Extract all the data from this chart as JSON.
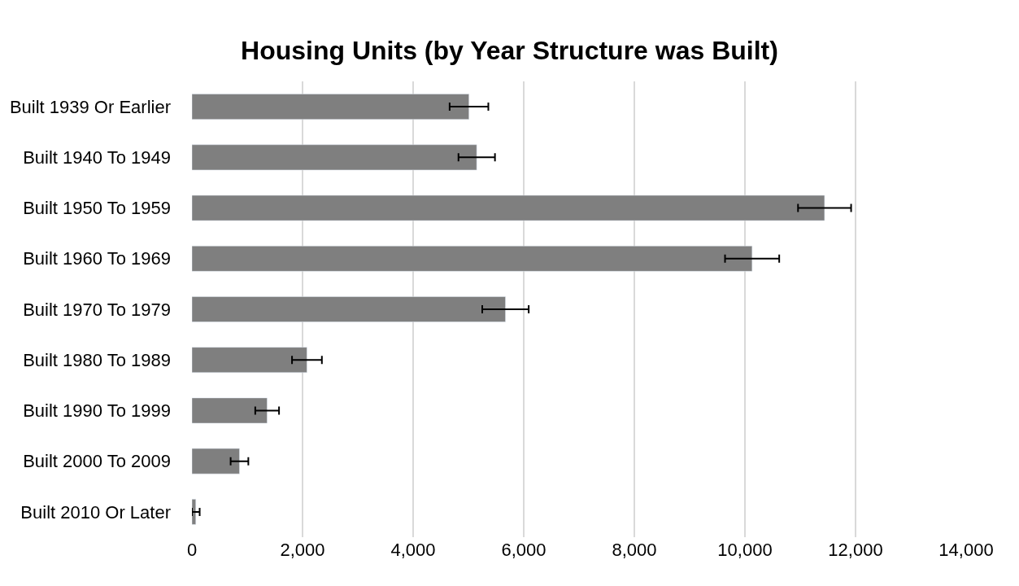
{
  "chart_data": {
    "type": "bar",
    "orientation": "horizontal",
    "title": "Housing Units (by Year Structure was Built)",
    "categories": [
      "Built 1939 Or Earlier",
      "Built 1940 To 1949",
      "Built 1950 To 1959",
      "Built 1960 To 1969",
      "Built 1970 To 1979",
      "Built 1980 To 1989",
      "Built 1990 To 1999",
      "Built 2000 To 2009",
      "Built 2010 Or Later"
    ],
    "values": [
      5010,
      5150,
      11440,
      10130,
      5670,
      2080,
      1360,
      860,
      70
    ],
    "errors": [
      350,
      330,
      480,
      490,
      420,
      270,
      215,
      160,
      70
    ],
    "color": "#7f7f7f",
    "xlim": [
      0,
      14000
    ],
    "xticks": [
      {
        "value": 0,
        "label": "0"
      },
      {
        "value": 2000,
        "label": "2,000"
      },
      {
        "value": 4000,
        "label": "4,000"
      },
      {
        "value": 6000,
        "label": "6,000"
      },
      {
        "value": 8000,
        "label": "8,000"
      },
      {
        "value": 10000,
        "label": "10,000"
      },
      {
        "value": 12000,
        "label": "12,000"
      },
      {
        "value": 14000,
        "label": "14,000"
      }
    ],
    "grid": "x"
  }
}
